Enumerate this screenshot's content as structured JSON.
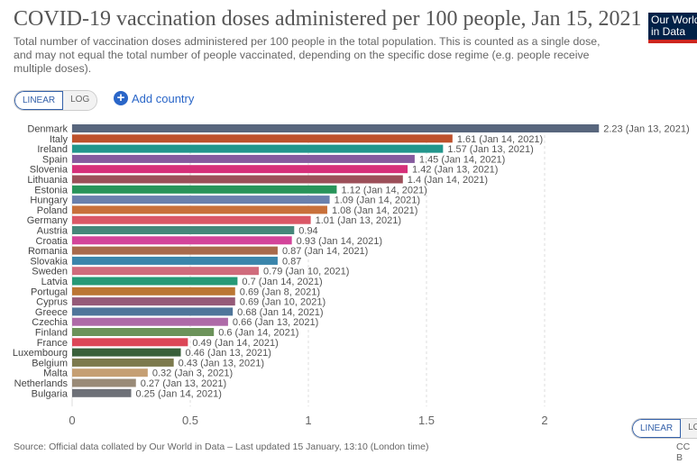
{
  "header": {
    "title": "COVID-19 vaccination doses administered per 100 people, Jan 15, 2021",
    "subtitle": "Total number of vaccination doses administered per 100 people in the total population. This is counted as a single dose, and may not equal the total number of people vaccinated, depending on the specific dose regime (e.g. people receive multiple doses).",
    "logo": "Our World in Data"
  },
  "controls": {
    "linear": "LINEAR",
    "log": "LOG",
    "add_country": "Add country",
    "log_bottom": "LO"
  },
  "footer": {
    "source": "Source: Official data collated by Our World in Data – Last updated 15 January, 13:10 (London time)",
    "license": "CC B"
  },
  "chart_data": {
    "type": "bar",
    "orientation": "horizontal",
    "xlim": [
      0,
      2.23
    ],
    "xticks": [
      "0",
      "0.5",
      "1",
      "1.5",
      "2"
    ],
    "grid": true,
    "categories": [
      "Denmark",
      "Italy",
      "Ireland",
      "Spain",
      "Slovenia",
      "Lithuania",
      "Estonia",
      "Hungary",
      "Poland",
      "Germany",
      "Austria",
      "Croatia",
      "Romania",
      "Slovakia",
      "Sweden",
      "Latvia",
      "Portugal",
      "Cyprus",
      "Greece",
      "Czechia",
      "Finland",
      "France",
      "Luxembourg",
      "Belgium",
      "Malta",
      "Netherlands",
      "Bulgaria"
    ],
    "values": [
      2.23,
      1.61,
      1.57,
      1.45,
      1.42,
      1.4,
      1.12,
      1.09,
      1.08,
      1.01,
      0.94,
      0.93,
      0.87,
      0.87,
      0.79,
      0.7,
      0.69,
      0.69,
      0.68,
      0.66,
      0.6,
      0.49,
      0.46,
      0.43,
      0.32,
      0.27,
      0.25
    ],
    "labels": [
      "2.23 (Jan 13, 2021)",
      "1.61 (Jan 14, 2021)",
      "1.57 (Jan 13, 2021)",
      "1.45 (Jan 14, 2021)",
      "1.42 (Jan 13, 2021)",
      "1.4 (Jan 14, 2021)",
      "1.12 (Jan 14, 2021)",
      "1.09 (Jan 14, 2021)",
      "1.08 (Jan 14, 2021)",
      "1.01 (Jan 13, 2021)",
      "0.94",
      "0.93 (Jan 14, 2021)",
      "0.87 (Jan 14, 2021)",
      "0.87",
      "0.79 (Jan 10, 2021)",
      "0.7 (Jan 14, 2021)",
      "0.69 (Jan 8, 2021)",
      "0.69 (Jan 10, 2021)",
      "0.68 (Jan 14, 2021)",
      "0.66 (Jan 13, 2021)",
      "0.6 (Jan 14, 2021)",
      "0.49 (Jan 14, 2021)",
      "0.46 (Jan 13, 2021)",
      "0.43 (Jan 13, 2021)",
      "0.32 (Jan 3, 2021)",
      "0.27 (Jan 13, 2021)",
      "0.25 (Jan 14, 2021)"
    ],
    "colors": [
      "#58667d",
      "#be512c",
      "#22968c",
      "#855a9e",
      "#d62f79",
      "#9c4f59",
      "#28945a",
      "#6a80ad",
      "#c8703a",
      "#da5766",
      "#45877a",
      "#d3449a",
      "#a86a4c",
      "#3a85ab",
      "#d06b7c",
      "#269976",
      "#bb7633",
      "#955a78",
      "#4f759a",
      "#ae6aa8",
      "#6c935a",
      "#dc4657",
      "#39603a",
      "#7c7a4d",
      "#c59f73",
      "#998a77",
      "#6d7077"
    ]
  }
}
